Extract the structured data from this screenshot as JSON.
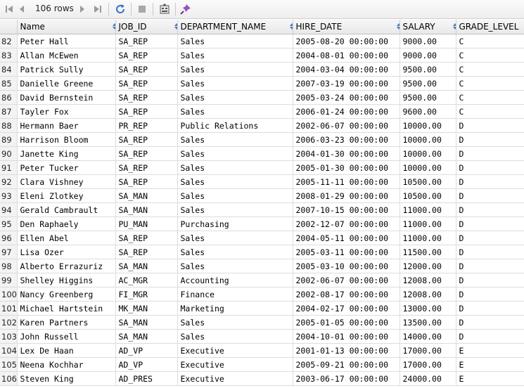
{
  "toolbar": {
    "row_count": "106 rows",
    "buttons": [
      {
        "name": "first-page-icon"
      },
      {
        "name": "prev-page-icon"
      },
      {
        "name": "next-page-icon"
      },
      {
        "name": "last-page-icon"
      },
      {
        "name": "refresh-icon"
      },
      {
        "name": "stop-icon"
      },
      {
        "name": "export-icon"
      },
      {
        "name": "pin-icon"
      }
    ]
  },
  "table": {
    "columns": [
      "Name",
      "JOB_ID",
      "DEPARTMENT_NAME",
      "HIRE_DATE",
      "SALARY",
      "GRADE_LEVEL"
    ],
    "rows": [
      [
        "82",
        "Peter Hall",
        "SA_REP",
        "Sales",
        "2005-08-20 00:00:00",
        "9000.00",
        "C"
      ],
      [
        "83",
        "Allan McEwen",
        "SA_REP",
        "Sales",
        "2004-08-01 00:00:00",
        "9000.00",
        "C"
      ],
      [
        "84",
        "Patrick Sully",
        "SA_REP",
        "Sales",
        "2004-03-04 00:00:00",
        "9500.00",
        "C"
      ],
      [
        "85",
        "Danielle Greene",
        "SA_REP",
        "Sales",
        "2007-03-19 00:00:00",
        "9500.00",
        "C"
      ],
      [
        "86",
        "David Bernstein",
        "SA_REP",
        "Sales",
        "2005-03-24 00:00:00",
        "9500.00",
        "C"
      ],
      [
        "87",
        "Tayler Fox",
        "SA_REP",
        "Sales",
        "2006-01-24 00:00:00",
        "9600.00",
        "C"
      ],
      [
        "88",
        "Hermann Baer",
        "PR_REP",
        "Public Relations",
        "2002-06-07 00:00:00",
        "10000.00",
        "D"
      ],
      [
        "89",
        "Harrison Bloom",
        "SA_REP",
        "Sales",
        "2006-03-23 00:00:00",
        "10000.00",
        "D"
      ],
      [
        "90",
        "Janette King",
        "SA_REP",
        "Sales",
        "2004-01-30 00:00:00",
        "10000.00",
        "D"
      ],
      [
        "91",
        "Peter Tucker",
        "SA_REP",
        "Sales",
        "2005-01-30 00:00:00",
        "10000.00",
        "D"
      ],
      [
        "92",
        "Clara Vishney",
        "SA_REP",
        "Sales",
        "2005-11-11 00:00:00",
        "10500.00",
        "D"
      ],
      [
        "93",
        "Eleni Zlotkey",
        "SA_MAN",
        "Sales",
        "2008-01-29 00:00:00",
        "10500.00",
        "D"
      ],
      [
        "94",
        "Gerald Cambrault",
        "SA_MAN",
        "Sales",
        "2007-10-15 00:00:00",
        "11000.00",
        "D"
      ],
      [
        "95",
        "Den Raphaely",
        "PU_MAN",
        "Purchasing",
        "2002-12-07 00:00:00",
        "11000.00",
        "D"
      ],
      [
        "96",
        "Ellen Abel",
        "SA_REP",
        "Sales",
        "2004-05-11 00:00:00",
        "11000.00",
        "D"
      ],
      [
        "97",
        "Lisa Ozer",
        "SA_REP",
        "Sales",
        "2005-03-11 00:00:00",
        "11500.00",
        "D"
      ],
      [
        "98",
        "Alberto Errazuriz",
        "SA_MAN",
        "Sales",
        "2005-03-10 00:00:00",
        "12000.00",
        "D"
      ],
      [
        "99",
        "Shelley Higgins",
        "AC_MGR",
        "Accounting",
        "2002-06-07 00:00:00",
        "12008.00",
        "D"
      ],
      [
        "100",
        "Nancy Greenberg",
        "FI_MGR",
        "Finance",
        "2002-08-17 00:00:00",
        "12008.00",
        "D"
      ],
      [
        "101",
        "Michael Hartstein",
        "MK_MAN",
        "Marketing",
        "2004-02-17 00:00:00",
        "13000.00",
        "D"
      ],
      [
        "102",
        "Karen Partners",
        "SA_MAN",
        "Sales",
        "2005-01-05 00:00:00",
        "13500.00",
        "D"
      ],
      [
        "103",
        "John Russell",
        "SA_MAN",
        "Sales",
        "2004-10-01 00:00:00",
        "14000.00",
        "D"
      ],
      [
        "104",
        "Lex De Haan",
        "AD_VP",
        "Executive",
        "2001-01-13 00:00:00",
        "17000.00",
        "E"
      ],
      [
        "105",
        "Neena Kochhar",
        "AD_VP",
        "Executive",
        "2005-09-21 00:00:00",
        "17000.00",
        "E"
      ],
      [
        "106",
        "Steven King",
        "AD_PRES",
        "Executive",
        "2003-06-17 00:00:00",
        "24000.00",
        "E"
      ]
    ]
  }
}
